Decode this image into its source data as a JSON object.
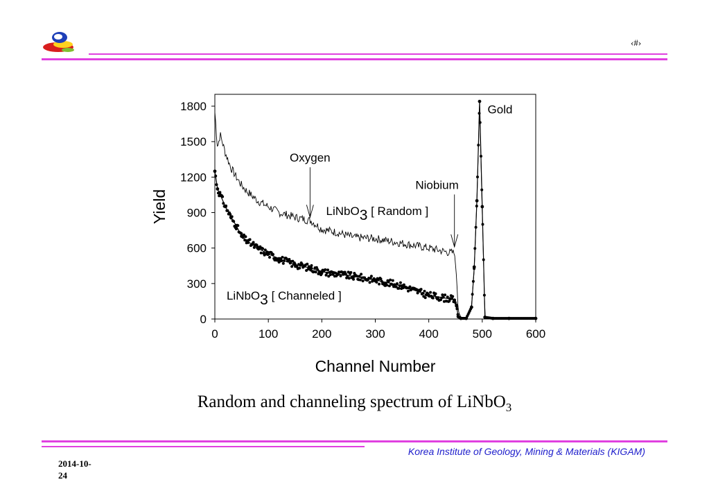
{
  "header": {
    "page_number": "‹#›"
  },
  "chart_data": {
    "type": "scatter",
    "xlabel": "Channel Number",
    "ylabel": "Yield",
    "xlim": [
      0,
      600
    ],
    "ylim": [
      0,
      1900
    ],
    "x_ticks": [
      "0",
      "100",
      "200",
      "300",
      "400",
      "500",
      "600"
    ],
    "y_ticks": [
      "0",
      "300",
      "600",
      "900",
      "1200",
      "1500",
      "1800"
    ],
    "grid": false,
    "series": [
      {
        "name": "LiNbO3 [ Random ]",
        "style": "line",
        "x": [
          0,
          5,
          10,
          20,
          30,
          40,
          50,
          60,
          80,
          100,
          120,
          150,
          180,
          200,
          230,
          260,
          300,
          350,
          400,
          440,
          448,
          452,
          455,
          460,
          470,
          480,
          485,
          490,
          495,
          500,
          505,
          520,
          550,
          600
        ],
        "y": [
          1750,
          1450,
          1560,
          1400,
          1280,
          1200,
          1130,
          1080,
          1000,
          950,
          900,
          860,
          830,
          760,
          730,
          690,
          680,
          640,
          600,
          560,
          560,
          350,
          70,
          15,
          15,
          120,
          420,
          1000,
          1820,
          900,
          20,
          5,
          5,
          5
        ]
      },
      {
        "name": "LiNbO3 [ Channeled ]",
        "style": "dots",
        "x": [
          0,
          5,
          10,
          20,
          30,
          40,
          50,
          60,
          80,
          100,
          120,
          150,
          180,
          200,
          230,
          260,
          300,
          350,
          400,
          440,
          448,
          452,
          455,
          460,
          470,
          480,
          485,
          490,
          495,
          500,
          505,
          520,
          550,
          600
        ],
        "y": [
          1250,
          1100,
          1050,
          950,
          860,
          790,
          700,
          660,
          600,
          550,
          510,
          460,
          430,
          400,
          380,
          360,
          330,
          280,
          200,
          170,
          160,
          110,
          20,
          5,
          5,
          100,
          440,
          1000,
          1840,
          950,
          15,
          5,
          5,
          5
        ]
      }
    ],
    "annotations": [
      {
        "text": "Gold",
        "x": 510,
        "y": 1740
      },
      {
        "text": "Oxygen",
        "x": 140,
        "y": 1330,
        "arrow_to": [
          178,
          860
        ]
      },
      {
        "text": "Niobium",
        "x": 375,
        "y": 1100,
        "arrow_to": [
          448,
          610
        ]
      },
      {
        "text": "LiNbO",
        "sub": "3",
        "rest": " [ Random ]",
        "x": 208,
        "y": 880
      },
      {
        "text": "LiNbO",
        "sub": "3",
        "rest": " [ Channeled ]",
        "x": 22,
        "y": 165
      }
    ]
  },
  "caption": {
    "text": "Random and channeling spectrum of LiNbO",
    "sub": "3"
  },
  "footer": {
    "organization": "Korea Institute of Geology, Mining & Materials (KIGAM)",
    "date_line1": "2014-10-",
    "date_line2": "24"
  },
  "colors": {
    "accent_line": "#e040e0",
    "footer_text": "#2020cc"
  }
}
